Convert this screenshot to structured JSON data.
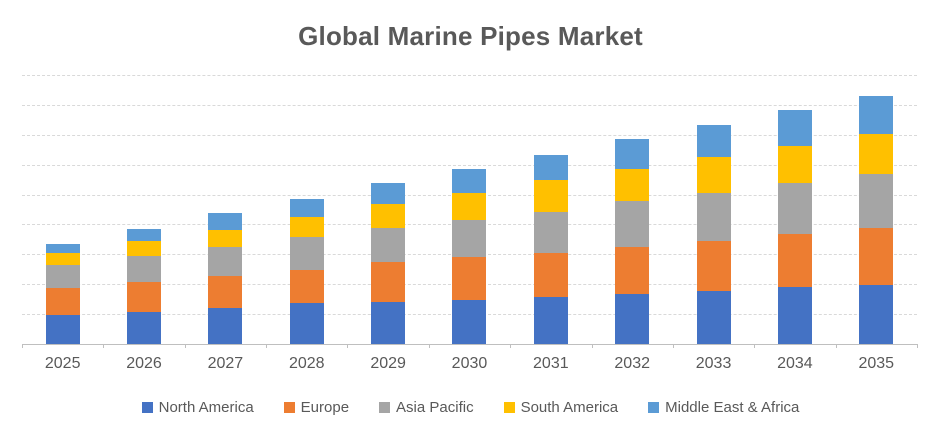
{
  "chart_data": {
    "type": "bar",
    "stacked": true,
    "title": "Global Marine Pipes Market",
    "xlabel": "",
    "ylabel": "",
    "categories": [
      "2025",
      "2026",
      "2027",
      "2028",
      "2029",
      "2030",
      "2031",
      "2032",
      "2033",
      "2034",
      "2035"
    ],
    "series": [
      {
        "name": "North America",
        "color": "#4472C4",
        "values": [
          9.7,
          10.6,
          11.9,
          13.6,
          13.9,
          14.7,
          15.6,
          16.7,
          17.7,
          19.2,
          19.7
        ]
      },
      {
        "name": "Europe",
        "color": "#ED7D31",
        "values": [
          9.1,
          10.3,
          10.9,
          11.1,
          13.4,
          14.3,
          14.9,
          15.7,
          16.8,
          17.5,
          19.0
        ]
      },
      {
        "name": "Asia Pacific",
        "color": "#A5A5A5",
        "values": [
          7.8,
          8.6,
          9.5,
          11.1,
          11.5,
          12.5,
          13.7,
          15.4,
          16.1,
          17.1,
          18.1
        ]
      },
      {
        "name": "South America",
        "color": "#FFC000",
        "values": [
          3.7,
          5.1,
          6.0,
          6.6,
          8.0,
          9.1,
          10.6,
          10.7,
          12.1,
          12.5,
          13.4
        ]
      },
      {
        "name": "Middle East & Africa",
        "color": "#5B9BD5",
        "values": [
          3.3,
          4.0,
          5.4,
          6.0,
          7.0,
          7.8,
          8.5,
          10.0,
          10.5,
          12.0,
          12.9
        ]
      }
    ],
    "ylim": [
      0,
      90
    ],
    "gridline_count": 9,
    "grid": true,
    "y_axis_labels_visible": false,
    "legend_position": "bottom"
  },
  "style": {
    "gridline_color": "#D9D9D9",
    "axis_color": "#BFBFBF",
    "text_color": "#595959",
    "background_color": "#FFFFFF"
  }
}
